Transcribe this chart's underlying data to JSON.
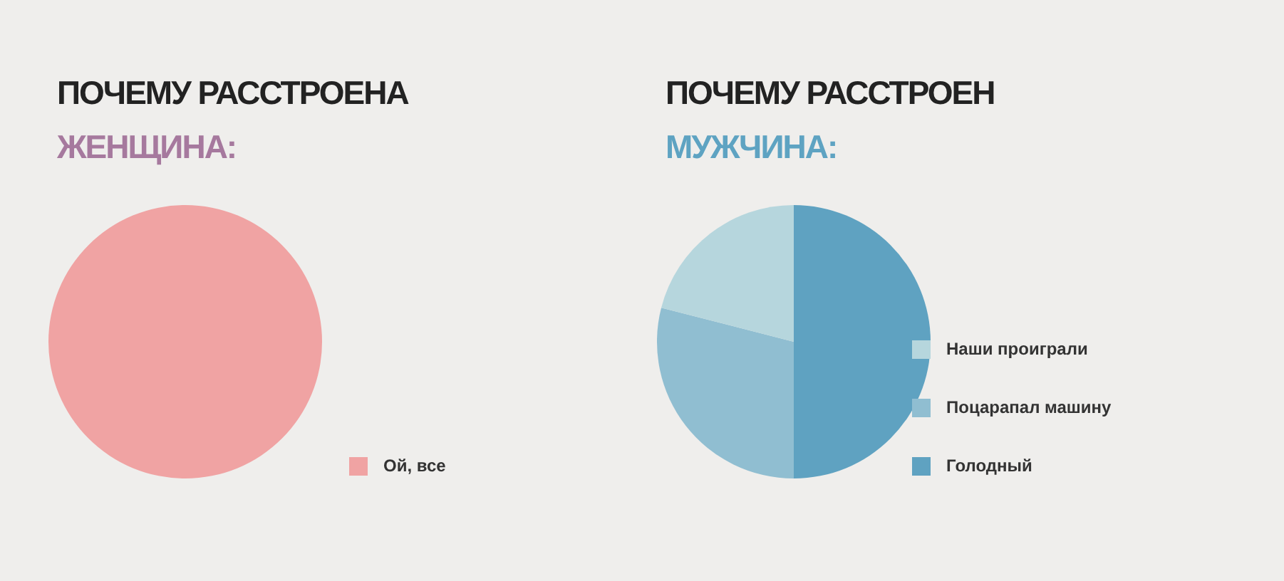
{
  "chart_data": [
    {
      "type": "pie",
      "title": "ПОЧЕМУ РАССТРОЕНА",
      "subtitle": "ЖЕНЩИНА:",
      "categories": [
        "Ой, все"
      ],
      "values": [
        100
      ],
      "colors": [
        "#f0a3a3"
      ],
      "legend": "bottom right"
    },
    {
      "type": "pie",
      "title": "ПОЧЕМУ РАССТРОЕН",
      "subtitle": "МУЖЧИНА:",
      "categories": [
        "Наши проиграли",
        "Поцарапал машину",
        "Голодный"
      ],
      "values": [
        21,
        29,
        50
      ],
      "colors": [
        "#b6d6dd",
        "#90bed1",
        "#5fa2c1"
      ],
      "legend": "right"
    }
  ]
}
